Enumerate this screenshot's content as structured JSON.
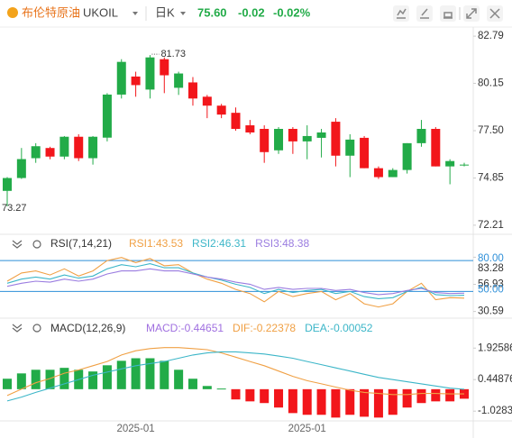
{
  "header": {
    "title": "布伦特原油",
    "symbol": "UKOIL",
    "period": "日K",
    "price": "75.60",
    "change": "-0.02",
    "change_pct": "-0.02%"
  },
  "chart_data": [
    {
      "type": "candlestick",
      "up_color": "#22ab48",
      "down_color": "#f2161b",
      "open": [
        74.13,
        74.85,
        75.96,
        76.53,
        76.05,
        77.16,
        75.96,
        77.11,
        79.52,
        80.53,
        79.8,
        81.5,
        79.9,
        80.2,
        79.4,
        78.9,
        78.5,
        77.8,
        77.6,
        76.4,
        77.6,
        76.9,
        77.1,
        78.0,
        76.1,
        77.1,
        75.4,
        74.9,
        75.3,
        76.8,
        77.6,
        75.5,
        75.55
      ],
      "high": [
        74.9,
        76.53,
        76.8,
        76.6,
        77.2,
        77.3,
        77.2,
        79.6,
        81.5,
        80.8,
        81.73,
        81.6,
        80.8,
        80.5,
        79.5,
        79.0,
        78.8,
        78.1,
        77.8,
        77.7,
        77.7,
        77.8,
        77.6,
        78.2,
        77.3,
        77.2,
        75.5,
        75.4,
        76.8,
        78.1,
        77.7,
        75.9,
        75.7
      ],
      "low": [
        73.27,
        74.8,
        75.7,
        75.9,
        75.9,
        75.8,
        75.6,
        76.9,
        79.3,
        79.4,
        79.3,
        79.6,
        79.5,
        78.9,
        78.2,
        78.2,
        77.5,
        77.3,
        75.7,
        76.2,
        76.2,
        75.9,
        76.0,
        75.5,
        74.9,
        75.4,
        74.8,
        74.9,
        75.1,
        76.6,
        75.5,
        74.5,
        75.5
      ],
      "close": [
        74.85,
        75.91,
        76.63,
        76.05,
        77.16,
        75.96,
        77.16,
        79.52,
        81.35,
        80.05,
        81.6,
        80.6,
        80.7,
        79.3,
        78.9,
        78.4,
        77.6,
        77.4,
        76.3,
        77.6,
        76.9,
        77.2,
        77.4,
        76.1,
        77.0,
        75.4,
        74.9,
        75.3,
        76.8,
        77.6,
        75.5,
        75.8,
        75.6
      ],
      "ylim": [
        71.8,
        83.3
      ],
      "yticks": [
        82.79,
        80.15,
        {
          "value": 77.5,
          "label": "77.50"
        },
        74.85,
        72.21
      ],
      "annotations": [
        81.73,
        73.27
      ]
    },
    {
      "type": "line",
      "title": "RSI(7,14,21)",
      "ylim": [
        25,
        88
      ],
      "yticks": [
        83.28,
        56.93,
        30.59
      ],
      "ref_lines": [
        {
          "value": 80,
          "label": "80.00"
        },
        {
          "value": 50,
          "label": "50.00"
        }
      ],
      "ref_color": "#2e8fd8",
      "series": [
        {
          "name": "RSI1:43.53",
          "color": "#f0a044",
          "values": [
            60,
            68,
            70,
            66,
            72,
            65,
            70,
            80,
            83,
            78,
            82,
            75,
            76,
            68,
            62,
            58,
            52,
            48,
            40,
            50,
            45,
            48,
            50,
            42,
            48,
            38,
            35,
            38,
            50,
            58,
            42,
            44,
            43.53
          ]
        },
        {
          "name": "RSI2:46.31",
          "color": "#3cb6c8",
          "values": [
            58,
            62,
            64,
            62,
            66,
            63,
            65,
            72,
            76,
            74,
            77,
            73,
            73,
            68,
            64,
            61,
            57,
            54,
            48,
            52,
            49,
            51,
            52,
            48,
            50,
            45,
            43,
            44,
            50,
            54,
            47,
            46,
            46.31
          ]
        },
        {
          "name": "RSI3:48.38",
          "color": "#9a7ce0",
          "values": [
            55,
            58,
            60,
            59,
            62,
            60,
            62,
            67,
            70,
            70,
            72,
            70,
            70,
            67,
            64,
            62,
            59,
            57,
            52,
            54,
            52,
            53,
            53,
            51,
            52,
            49,
            47,
            48,
            51,
            53,
            49,
            48,
            48.38
          ]
        }
      ]
    },
    {
      "type": "macd",
      "title": "MACD(12,26,9)",
      "ylim": [
        -1.4,
        2.4
      ],
      "yticks": [
        1.92586,
        0.44876,
        -1.02834
      ],
      "up_color": "#22ab48",
      "down_color": "#f2161b",
      "categories": [
        null,
        null,
        null,
        null,
        null,
        null,
        null,
        null,
        null,
        "2025-01",
        null,
        null,
        null,
        null,
        null,
        null,
        null,
        null,
        null,
        null,
        null,
        "2025-01",
        null,
        null,
        null,
        null,
        null,
        null,
        null,
        null,
        null,
        null,
        null
      ],
      "series": [
        {
          "name": "MACD:-0.44651",
          "color": "#a070e0",
          "kind": "bar",
          "values": [
            0.49,
            0.74,
            0.91,
            0.91,
            1.0,
            0.91,
            0.83,
            1.12,
            1.33,
            1.45,
            1.45,
            1.33,
            0.91,
            0.49,
            0.15,
            0.03,
            -0.48,
            -0.57,
            -0.65,
            -0.86,
            -1.12,
            -1.2,
            -1.2,
            -1.33,
            -1.2,
            -1.29,
            -1.33,
            -1.2,
            -0.86,
            -0.65,
            -0.57,
            -0.57,
            -0.44651
          ]
        },
        {
          "name": "DIF:-0.22378",
          "color": "#f0a044",
          "kind": "line",
          "values": [
            -0.3,
            0.0,
            0.3,
            0.5,
            0.75,
            0.9,
            1.1,
            1.3,
            1.6,
            1.8,
            1.9,
            1.95,
            1.95,
            1.9,
            1.85,
            1.7,
            1.5,
            1.3,
            1.1,
            0.85,
            0.6,
            0.4,
            0.25,
            0.1,
            -0.05,
            -0.15,
            -0.2,
            -0.25,
            -0.25,
            -0.2,
            -0.2,
            -0.22,
            -0.22378
          ]
        },
        {
          "name": "DEA:-0.00052",
          "color": "#3cb6c8",
          "kind": "line",
          "values": [
            -0.55,
            -0.37,
            -0.15,
            0.05,
            0.25,
            0.45,
            0.65,
            0.8,
            0.95,
            1.1,
            1.2,
            1.3,
            1.45,
            1.6,
            1.7,
            1.75,
            1.75,
            1.7,
            1.65,
            1.55,
            1.45,
            1.3,
            1.15,
            1.0,
            0.85,
            0.7,
            0.55,
            0.45,
            0.35,
            0.25,
            0.15,
            0.05,
            -0.00052
          ]
        }
      ]
    }
  ]
}
